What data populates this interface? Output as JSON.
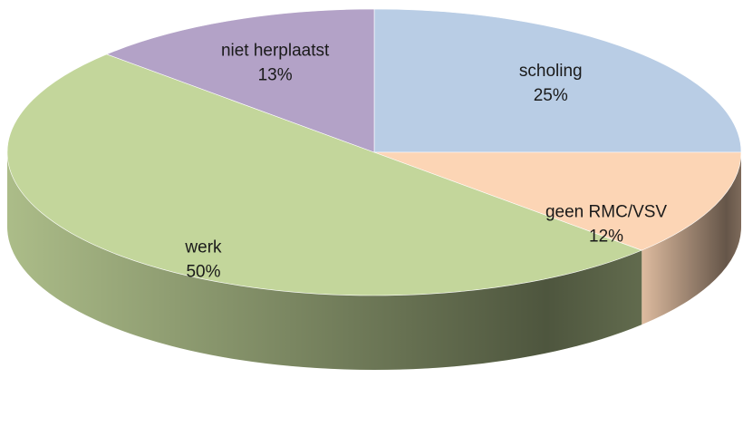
{
  "chart_data": {
    "type": "pie",
    "categories": [
      "scholing",
      "geen RMC/VSV",
      "werk",
      "niet herplaatst"
    ],
    "values": [
      25,
      12,
      50,
      13
    ],
    "value_labels": [
      "25%",
      "12%",
      "50%",
      "13%"
    ],
    "colors": [
      "#b9cde5",
      "#fcd5b5",
      "#c3d69b",
      "#b3a2c7"
    ]
  }
}
